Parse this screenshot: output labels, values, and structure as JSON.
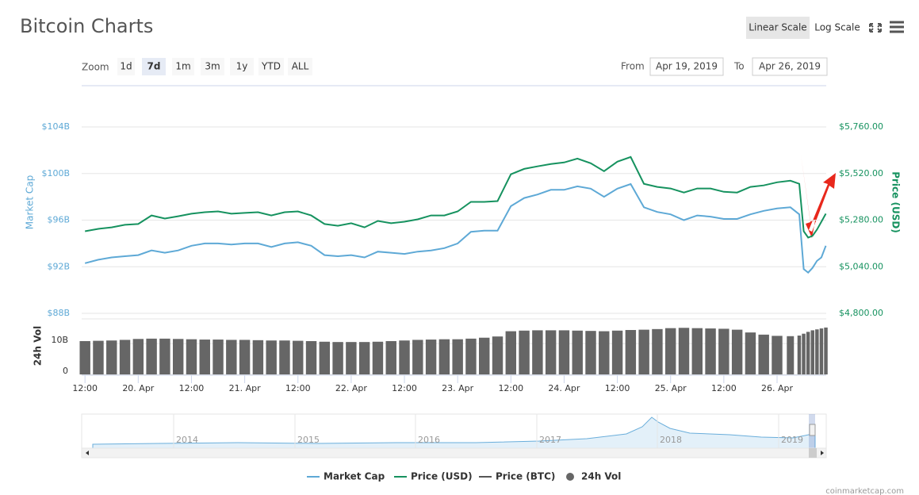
{
  "header": {
    "title": "Bitcoin Charts",
    "scale_buttons": [
      "Linear Scale",
      "Log Scale"
    ],
    "active_scale": "Linear Scale"
  },
  "toolbar": {
    "zoom_label": "Zoom",
    "zoom_buttons": [
      "1d",
      "7d",
      "1m",
      "3m",
      "1y",
      "YTD",
      "ALL"
    ],
    "selected": "7d",
    "from_label": "From",
    "from": "Apr 19, 2019",
    "to_label": "To",
    "to": "Apr 26, 2019"
  },
  "chart_data": {
    "type": "line",
    "x": [
      "2019-04-19T12:00",
      "2019-04-19T15:00",
      "2019-04-19T18:00",
      "2019-04-19T21:00",
      "2019-04-20T00:00",
      "2019-04-20T03:00",
      "2019-04-20T06:00",
      "2019-04-20T09:00",
      "2019-04-20T12:00",
      "2019-04-20T15:00",
      "2019-04-20T18:00",
      "2019-04-20T21:00",
      "2019-04-21T00:00",
      "2019-04-21T03:00",
      "2019-04-21T06:00",
      "2019-04-21T09:00",
      "2019-04-21T12:00",
      "2019-04-21T15:00",
      "2019-04-21T18:00",
      "2019-04-21T21:00",
      "2019-04-22T00:00",
      "2019-04-22T03:00",
      "2019-04-22T06:00",
      "2019-04-22T09:00",
      "2019-04-22T12:00",
      "2019-04-22T15:00",
      "2019-04-22T18:00",
      "2019-04-22T21:00",
      "2019-04-23T00:00",
      "2019-04-23T03:00",
      "2019-04-23T06:00",
      "2019-04-23T09:00",
      "2019-04-23T12:00",
      "2019-04-23T15:00",
      "2019-04-23T18:00",
      "2019-04-23T21:00",
      "2019-04-24T00:00",
      "2019-04-24T03:00",
      "2019-04-24T06:00",
      "2019-04-24T09:00",
      "2019-04-24T12:00",
      "2019-04-24T15:00",
      "2019-04-24T18:00",
      "2019-04-24T21:00",
      "2019-04-25T00:00",
      "2019-04-25T03:00",
      "2019-04-25T06:00",
      "2019-04-25T09:00",
      "2019-04-25T12:00",
      "2019-04-25T15:00",
      "2019-04-25T18:00",
      "2019-04-25T21:00",
      "2019-04-26T00:00",
      "2019-04-26T03:00",
      "2019-04-26T05:00",
      "2019-04-26T06:00",
      "2019-04-26T07:00",
      "2019-04-26T08:00",
      "2019-04-26T09:00",
      "2019-04-26T10:00",
      "2019-04-26T11:00"
    ],
    "xlim": [
      "2019-04-19T11:15",
      "2019-04-26T11:05"
    ],
    "xticks": [
      {
        "value": "2019-04-19T12:00",
        "label": "12:00"
      },
      {
        "value": "2019-04-20T00:00",
        "label": "20. Apr"
      },
      {
        "value": "2019-04-20T12:00",
        "label": "12:00"
      },
      {
        "value": "2019-04-21T00:00",
        "label": "21. Apr"
      },
      {
        "value": "2019-04-21T12:00",
        "label": "12:00"
      },
      {
        "value": "2019-04-22T00:00",
        "label": "22. Apr"
      },
      {
        "value": "2019-04-22T12:00",
        "label": "12:00"
      },
      {
        "value": "2019-04-23T00:00",
        "label": "23. Apr"
      },
      {
        "value": "2019-04-23T12:00",
        "label": "12:00"
      },
      {
        "value": "2019-04-24T00:00",
        "label": "24. Apr"
      },
      {
        "value": "2019-04-24T12:00",
        "label": "12:00"
      },
      {
        "value": "2019-04-25T00:00",
        "label": "25. Apr"
      },
      {
        "value": "2019-04-25T12:00",
        "label": "12:00"
      },
      {
        "value": "2019-04-26T00:00",
        "label": "26. Apr"
      }
    ],
    "ylabel": "Market Cap",
    "ylim": [
      88,
      104
    ],
    "yticks": [
      {
        "value": 88,
        "label": "$88B"
      },
      {
        "value": 92,
        "label": "$92B"
      },
      {
        "value": 96,
        "label": "$96B"
      },
      {
        "value": 100,
        "label": "$100B"
      },
      {
        "value": 104,
        "label": "$104B"
      }
    ],
    "y2label": "Price (USD)",
    "y2lim": [
      4800,
      5760
    ],
    "y2ticks": [
      {
        "value": 4800,
        "label": "$4,800.00"
      },
      {
        "value": 5040,
        "label": "$5,040.00"
      },
      {
        "value": 5280,
        "label": "$5,280.00"
      },
      {
        "value": 5520,
        "label": "$5,520.00"
      },
      {
        "value": 5760,
        "label": "$5,760.00"
      }
    ],
    "y3label": "24h Vol",
    "y3lim": [
      0,
      18
    ],
    "y3ticks": [
      0,
      {
        "value": 10,
        "label": "10B"
      }
    ],
    "grid": true,
    "series": [
      {
        "name": "Market Cap",
        "color": "#5ea9d6",
        "axis": "y",
        "values": [
          92.3,
          92.6,
          92.8,
          92.9,
          93.0,
          93.4,
          93.2,
          93.4,
          93.8,
          94.0,
          94.0,
          93.9,
          94.0,
          94.0,
          93.7,
          94.0,
          94.1,
          93.8,
          93.0,
          92.9,
          93.0,
          92.8,
          93.3,
          93.2,
          93.1,
          93.3,
          93.4,
          93.6,
          94.0,
          95.0,
          95.1,
          95.1,
          97.2,
          97.9,
          98.2,
          98.6,
          98.6,
          98.9,
          98.7,
          98.0,
          98.7,
          99.1,
          97.1,
          96.7,
          96.5,
          96.0,
          96.4,
          96.3,
          96.1,
          96.1,
          96.5,
          96.8,
          97.0,
          97.1,
          96.5,
          91.8,
          91.5,
          91.9,
          92.5,
          92.8,
          93.8
        ]
      },
      {
        "name": "Price (USD)",
        "color": "#16925f",
        "axis": "y2",
        "values": [
          5223,
          5235,
          5243,
          5256,
          5260,
          5304,
          5288,
          5300,
          5313,
          5321,
          5325,
          5313,
          5317,
          5321,
          5304,
          5321,
          5325,
          5304,
          5260,
          5251,
          5264,
          5243,
          5276,
          5264,
          5272,
          5284,
          5304,
          5304,
          5325,
          5374,
          5374,
          5378,
          5516,
          5544,
          5557,
          5569,
          5577,
          5597,
          5573,
          5532,
          5581,
          5605,
          5467,
          5451,
          5443,
          5422,
          5443,
          5443,
          5426,
          5422,
          5451,
          5459,
          5475,
          5483,
          5467,
          5223,
          5190,
          5199,
          5231,
          5272,
          5313
        ]
      },
      {
        "name": "24h Vol",
        "color": "#666666",
        "axis": "y3",
        "type": "bar",
        "values": [
          10.8,
          10.9,
          11.0,
          11.2,
          11.5,
          11.6,
          11.6,
          11.5,
          11.4,
          11.3,
          11.3,
          11.2,
          11.2,
          11.1,
          11.0,
          11.0,
          10.9,
          10.8,
          10.6,
          10.5,
          10.5,
          10.5,
          10.6,
          10.8,
          11.0,
          11.2,
          11.3,
          11.4,
          11.4,
          11.6,
          11.9,
          12.3,
          14.0,
          14.2,
          14.3,
          14.3,
          14.3,
          14.2,
          14.1,
          14.0,
          14.2,
          14.4,
          14.5,
          14.7,
          15.0,
          15.1,
          15.0,
          14.9,
          14.8,
          14.5,
          13.6,
          12.9,
          12.5,
          12.4,
          12.6,
          13.2,
          13.8,
          14.3,
          14.6,
          14.9,
          15.2
        ]
      }
    ],
    "hidden_series": [
      {
        "name": "Price (BTC)",
        "color": "#555555"
      }
    ]
  },
  "navigator": {
    "labels": [
      "2014",
      "2015",
      "2016",
      "2017",
      "2018",
      "2019"
    ]
  },
  "credit": "coinmarketcap.com"
}
